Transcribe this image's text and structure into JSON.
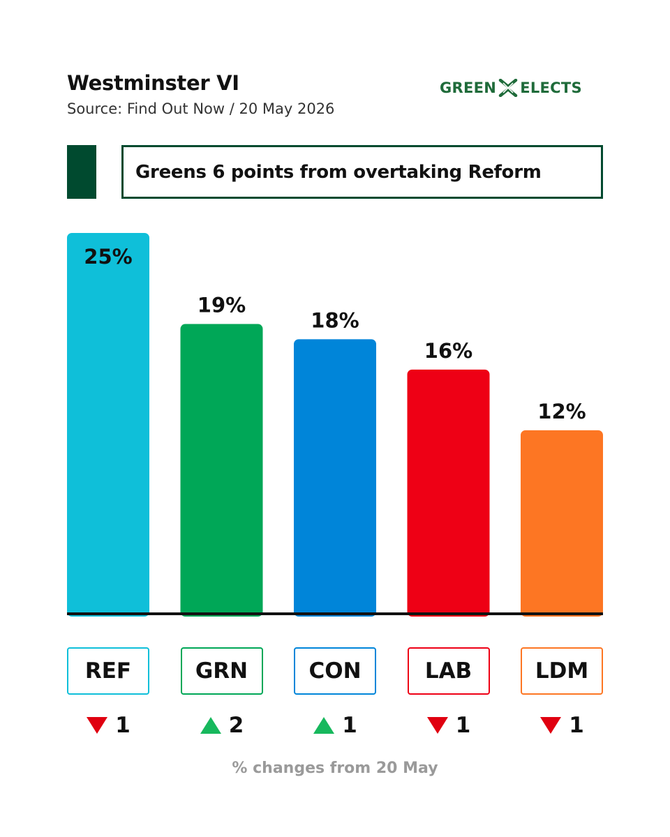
{
  "header": {
    "title": "Westminster VI",
    "source": "Source: Find Out Now / 20 May 2026",
    "logo_left": "GREEN",
    "logo_right": "ELECTS",
    "logo_icon": "x-mark-icon",
    "logo_color": "#1f6b3a"
  },
  "headline": "Greens 6 points from overtaking Reform",
  "accent_color": "#004a2f",
  "footnote": "% changes from 20 May",
  "chart_data": {
    "type": "bar",
    "title": "Westminster VI",
    "xlabel": "",
    "ylabel": "",
    "ylim": [
      0,
      25
    ],
    "grid": false,
    "legend": "none",
    "categories": [
      "REF",
      "GRN",
      "CON",
      "LAB",
      "LDM"
    ],
    "values": [
      25,
      19,
      18,
      16,
      12
    ],
    "value_labels": [
      "25%",
      "19%",
      "18%",
      "16%",
      "12%"
    ],
    "colors": [
      "#0fbfd9",
      "#00a757",
      "#0085d9",
      "#ee0015",
      "#fd7623"
    ],
    "changes": [
      {
        "direction": "down",
        "value": 1,
        "label": "1"
      },
      {
        "direction": "up",
        "value": 2,
        "label": "2"
      },
      {
        "direction": "up",
        "value": 1,
        "label": "1"
      },
      {
        "direction": "down",
        "value": 1,
        "label": "1"
      },
      {
        "direction": "down",
        "value": 1,
        "label": "1"
      }
    ],
    "change_colors": {
      "up": "#17b85d",
      "down": "#e00010"
    }
  }
}
